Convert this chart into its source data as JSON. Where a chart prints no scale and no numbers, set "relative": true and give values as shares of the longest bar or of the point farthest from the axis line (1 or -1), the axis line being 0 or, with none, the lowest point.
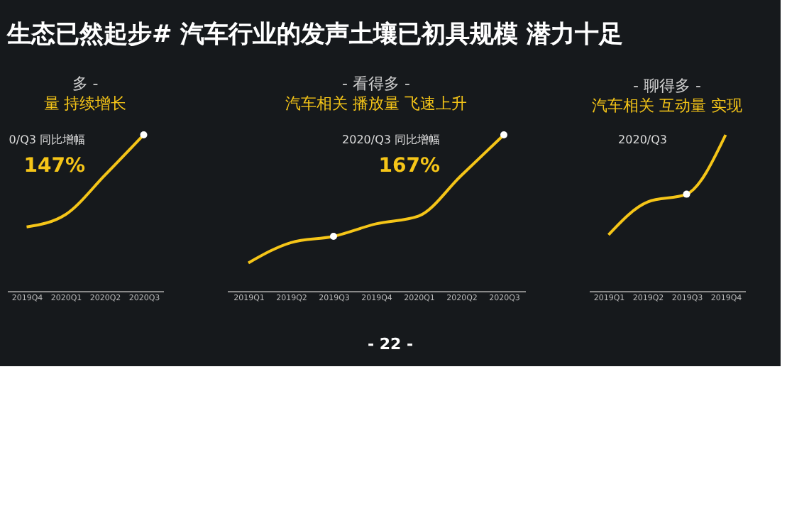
{
  "chart_data": [
    {
      "type": "other",
      "title": "生态已然起步# 汽车行业的发声土壤已初具规模  潜力十足",
      "annotations": [
        "- 22 -"
      ]
    },
    {
      "type": "line",
      "title": "多 -",
      "subtitle": "量 持续增长",
      "categories": [
        "2019Q4",
        "2020Q1",
        "2020Q2",
        "2020Q3"
      ],
      "relative": true,
      "grid": false,
      "annotations": [
        "0/Q3 同比增幅",
        "147%"
      ],
      "series": [
        {
          "color": "#f5c518",
          "values": [
            0.41,
            0.49,
            0.74,
            1
          ]
        },
        {
          "type": "scatter",
          "color": "#ffffff",
          "values": [
            null,
            null,
            null,
            1
          ]
        }
      ]
    },
    {
      "type": "line",
      "title": "- 看得多 -",
      "subtitle": "汽车相关 播放量 飞速上升",
      "categories": [
        "2019Q1",
        "2019Q2",
        "2019Q3",
        "2019Q4",
        "2020Q1",
        "2020Q2",
        "2020Q3"
      ],
      "relative": true,
      "grid": false,
      "annotations": [
        "2020/Q3 同比增幅",
        "167%"
      ],
      "series": [
        {
          "color": "#f5c518",
          "values": [
            0.18,
            0.31,
            0.35,
            0.43,
            0.48,
            0.74,
            1
          ]
        },
        {
          "type": "scatter",
          "color": "#ffffff",
          "values": [
            null,
            null,
            0.35,
            null,
            null,
            null,
            1
          ]
        }
      ]
    },
    {
      "type": "line",
      "title": "- 聊得多 -",
      "subtitle": "汽车相关 互动量 实现",
      "categories": [
        "2019Q1",
        "2019Q2",
        "2019Q3",
        "2019Q4"
      ],
      "relative": true,
      "grid": false,
      "annotations": [
        "2020/Q3"
      ],
      "series": [
        {
          "color": "#f5c518",
          "values": [
            0.36,
            0.57,
            0.62,
            1
          ]
        },
        {
          "type": "scatter",
          "color": "#ffffff",
          "values": [
            null,
            null,
            0.62,
            null
          ]
        }
      ]
    }
  ]
}
